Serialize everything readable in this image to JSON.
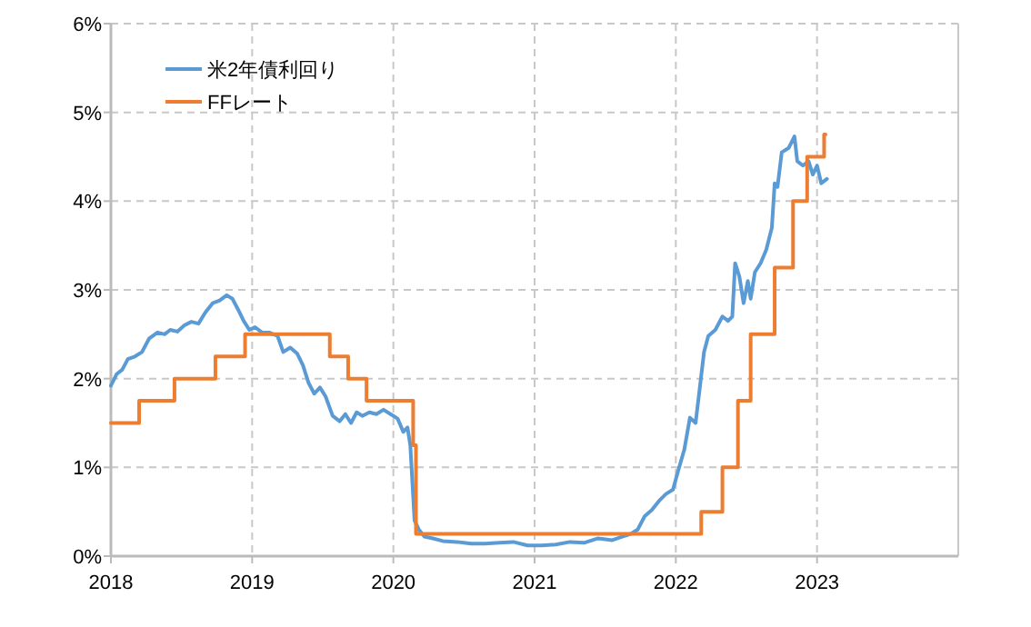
{
  "chart_data": {
    "type": "line",
    "legend": "top left",
    "grid": true,
    "xlim": [
      2018,
      2024
    ],
    "xticks": [
      2018,
      2019,
      2020,
      2021,
      2022,
      2023
    ],
    "ylim": [
      0,
      6
    ],
    "yticks": [
      {
        "value": 0,
        "label": "0%"
      },
      {
        "value": 1,
        "label": "1%"
      },
      {
        "value": 2,
        "label": "2%"
      },
      {
        "value": 3,
        "label": "3%"
      },
      {
        "value": 4,
        "label": "4%"
      },
      {
        "value": 5,
        "label": "5%"
      },
      {
        "value": 6,
        "label": "6%"
      }
    ],
    "series": [
      {
        "name": "米2年債利回り",
        "color": "#5b9bd5",
        "x": [
          2018.0,
          2018.04,
          2018.08,
          2018.12,
          2018.17,
          2018.22,
          2018.27,
          2018.33,
          2018.38,
          2018.42,
          2018.47,
          2018.52,
          2018.57,
          2018.62,
          2018.67,
          2018.72,
          2018.77,
          2018.82,
          2018.86,
          2018.9,
          2018.94,
          2018.98,
          2019.02,
          2019.07,
          2019.12,
          2019.18,
          2019.22,
          2019.27,
          2019.32,
          2019.36,
          2019.4,
          2019.44,
          2019.48,
          2019.52,
          2019.57,
          2019.62,
          2019.66,
          2019.7,
          2019.74,
          2019.78,
          2019.83,
          2019.88,
          2019.93,
          2019.98,
          2020.03,
          2020.07,
          2020.1,
          2020.12,
          2020.15,
          2020.18,
          2020.22,
          2020.28,
          2020.35,
          2020.45,
          2020.55,
          2020.65,
          2020.75,
          2020.85,
          2020.95,
          2021.05,
          2021.15,
          2021.25,
          2021.35,
          2021.45,
          2021.55,
          2021.62,
          2021.68,
          2021.73,
          2021.78,
          2021.83,
          2021.88,
          2021.93,
          2021.98,
          2022.02,
          2022.06,
          2022.1,
          2022.14,
          2022.17,
          2022.2,
          2022.23,
          2022.28,
          2022.33,
          2022.37,
          2022.4,
          2022.42,
          2022.45,
          2022.48,
          2022.51,
          2022.53,
          2022.56,
          2022.6,
          2022.64,
          2022.68,
          2022.7,
          2022.72,
          2022.75,
          2022.8,
          2022.84,
          2022.86,
          2022.9,
          2022.94,
          2022.97,
          2023.0,
          2023.03,
          2023.07
        ],
        "values": [
          1.92,
          2.05,
          2.1,
          2.22,
          2.25,
          2.3,
          2.45,
          2.52,
          2.5,
          2.55,
          2.53,
          2.6,
          2.64,
          2.62,
          2.75,
          2.85,
          2.88,
          2.94,
          2.9,
          2.78,
          2.65,
          2.55,
          2.58,
          2.52,
          2.52,
          2.48,
          2.3,
          2.35,
          2.28,
          2.15,
          1.95,
          1.83,
          1.9,
          1.8,
          1.58,
          1.52,
          1.6,
          1.5,
          1.62,
          1.58,
          1.62,
          1.6,
          1.65,
          1.6,
          1.55,
          1.4,
          1.45,
          1.25,
          0.4,
          0.3,
          0.22,
          0.2,
          0.17,
          0.16,
          0.14,
          0.14,
          0.15,
          0.16,
          0.12,
          0.12,
          0.13,
          0.16,
          0.15,
          0.2,
          0.18,
          0.22,
          0.25,
          0.3,
          0.45,
          0.52,
          0.62,
          0.7,
          0.75,
          0.98,
          1.2,
          1.56,
          1.5,
          1.9,
          2.3,
          2.48,
          2.55,
          2.7,
          2.65,
          2.7,
          3.3,
          3.15,
          2.85,
          3.1,
          2.9,
          3.2,
          3.3,
          3.45,
          3.7,
          4.2,
          4.16,
          4.55,
          4.6,
          4.73,
          4.45,
          4.4,
          4.45,
          4.3,
          4.4,
          4.2,
          4.25
        ]
      },
      {
        "name": "FFレート",
        "color": "#ed7d31",
        "type": "step",
        "x": [
          2018.0,
          2018.2,
          2018.45,
          2018.74,
          2018.95,
          2019.55,
          2019.68,
          2019.81,
          2020.14,
          2020.16,
          2022.18,
          2022.33,
          2022.44,
          2022.53,
          2022.7,
          2022.83,
          2022.93,
          2023.05,
          2023.06
        ],
        "values": [
          1.5,
          1.75,
          2.0,
          2.25,
          2.5,
          2.25,
          2.0,
          1.75,
          1.25,
          0.25,
          0.5,
          1.0,
          1.75,
          2.5,
          3.25,
          4.0,
          4.5,
          4.75,
          4.75
        ]
      }
    ]
  }
}
